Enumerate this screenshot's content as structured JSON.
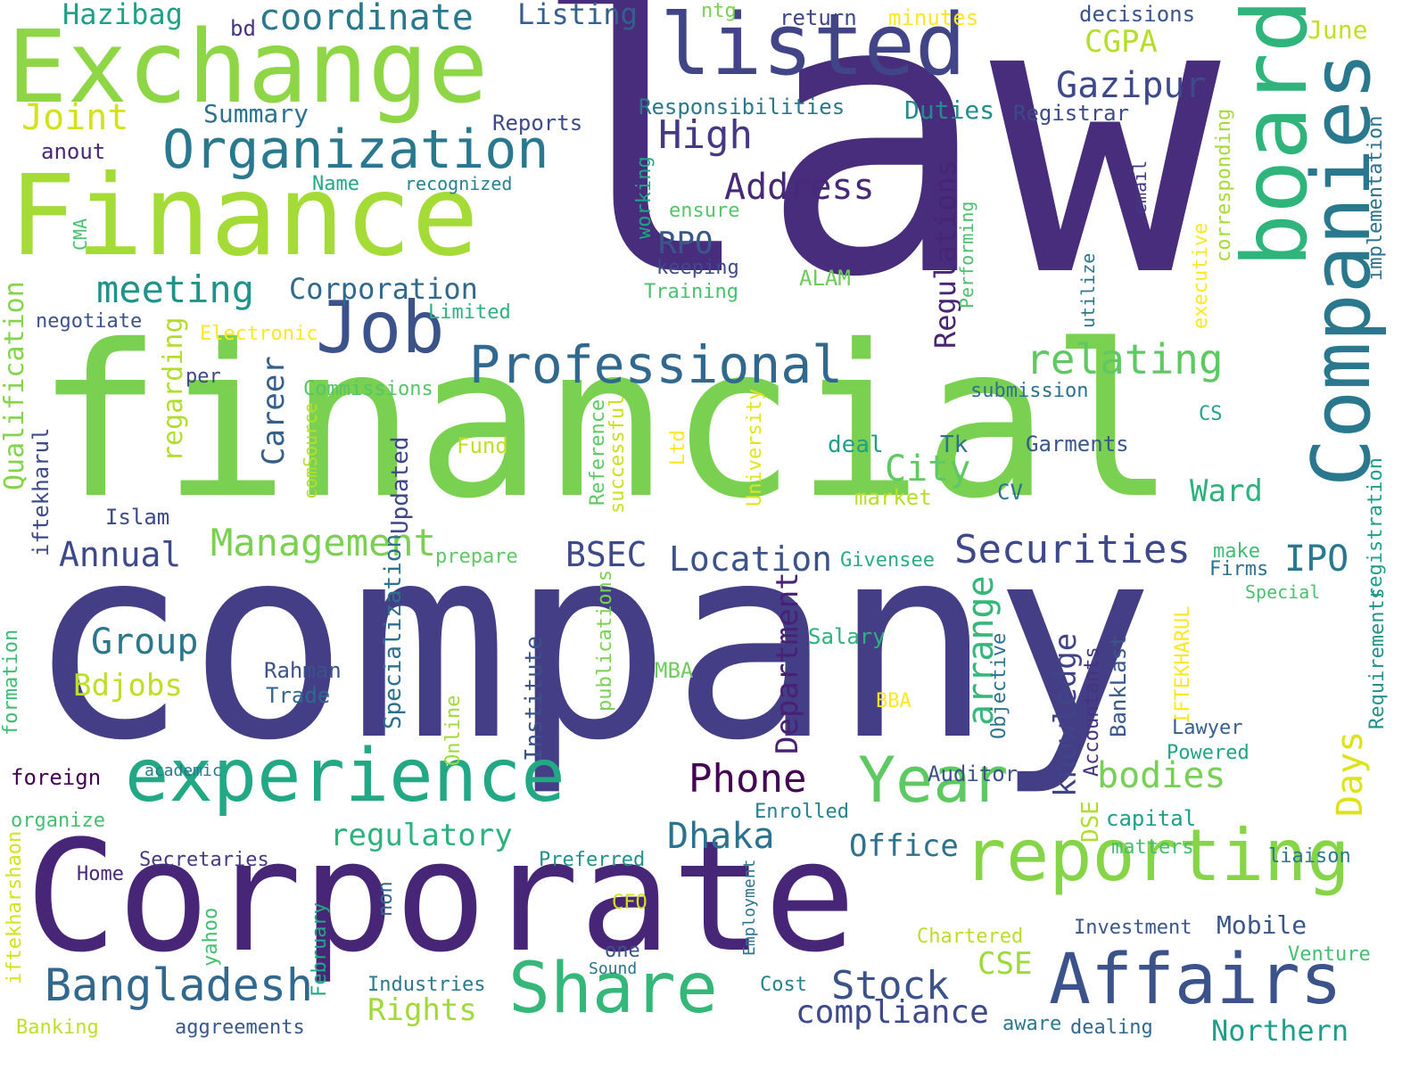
{
  "word_cloud": {
    "words": [
      {
        "text": "law",
        "color": "#472d7b"
      },
      {
        "text": "company",
        "color": "#433e85"
      },
      {
        "text": "financial",
        "color": "#7ad151"
      },
      {
        "text": "Corporate",
        "color": "#482677"
      },
      {
        "text": "Finance",
        "color": "#a5db36"
      },
      {
        "text": "Exchange",
        "color": "#8ed645"
      },
      {
        "text": "listed",
        "color": "#414487"
      },
      {
        "text": "board",
        "color": "#2fb47c"
      },
      {
        "text": "Companies",
        "color": "#2a788e"
      },
      {
        "text": "experience",
        "color": "#22a884"
      },
      {
        "text": "reporting",
        "color": "#86d549"
      },
      {
        "text": "Affairs",
        "color": "#3b528b"
      },
      {
        "text": "Share",
        "color": "#35b779"
      },
      {
        "text": "Year",
        "color": "#5ec962"
      },
      {
        "text": "Job",
        "color": "#3b528b"
      },
      {
        "text": "Organization",
        "color": "#2a788e"
      },
      {
        "text": "Professional",
        "color": "#31688e"
      },
      {
        "text": "Bangladesh",
        "color": "#31688e"
      },
      {
        "text": "relating",
        "color": "#5ec962"
      },
      {
        "text": "Securities",
        "color": "#3e4989"
      },
      {
        "text": "Management",
        "color": "#7ad151"
      },
      {
        "text": "meeting",
        "color": "#21918c"
      },
      {
        "text": "High",
        "color": "#443983"
      },
      {
        "text": "Gazipur",
        "color": "#3e4989"
      },
      {
        "text": "Address",
        "color": "#482878"
      },
      {
        "text": "Stock",
        "color": "#3b528b"
      },
      {
        "text": "compliance",
        "color": "#3e4989"
      },
      {
        "text": "Dhaka",
        "color": "#2c728e"
      },
      {
        "text": "regulatory",
        "color": "#2db27d"
      },
      {
        "text": "bodies",
        "color": "#75d054"
      },
      {
        "text": "Phone",
        "color": "#440154"
      },
      {
        "text": "coordinate",
        "color": "#2a788e"
      },
      {
        "text": "Joint",
        "color": "#d2e21b"
      },
      {
        "text": "Regulations",
        "color": "#482475"
      },
      {
        "text": "arrange",
        "color": "#35b779"
      },
      {
        "text": "knowledge",
        "color": "#414487"
      },
      {
        "text": "Days",
        "color": "#dde318"
      },
      {
        "text": "City",
        "color": "#5ec962"
      },
      {
        "text": "Ward",
        "color": "#2db27d"
      },
      {
        "text": "Location",
        "color": "#3b528b"
      },
      {
        "text": "Group",
        "color": "#2a788e"
      },
      {
        "text": "Bdjobs",
        "color": "#bddf26"
      },
      {
        "text": "Career",
        "color": "#355f8d"
      },
      {
        "text": "Annual",
        "color": "#3e4989"
      },
      {
        "text": "BSEC",
        "color": "#3e4989"
      },
      {
        "text": "IPO",
        "color": "#2a788e"
      },
      {
        "text": "Corporation",
        "color": "#31688e"
      },
      {
        "text": "Rights",
        "color": "#a0da39"
      },
      {
        "text": "CSE",
        "color": "#9bd93c"
      },
      {
        "text": "Northern",
        "color": "#1f9e89"
      },
      {
        "text": "Department",
        "color": "#482173"
      },
      {
        "text": "Office",
        "color": "#2c728e"
      },
      {
        "text": "RPO",
        "color": "#38588c"
      },
      {
        "text": "Listing",
        "color": "#355f8d"
      },
      {
        "text": "Hazibag",
        "color": "#1fa188"
      },
      {
        "text": "CGPA",
        "color": "#b5de2b"
      },
      {
        "text": "June",
        "color": "#c2df23"
      },
      {
        "text": "Duties",
        "color": "#228d8d"
      },
      {
        "text": "Summary",
        "color": "#2c728e"
      },
      {
        "text": "Qualification",
        "color": "#84d44b"
      },
      {
        "text": "regarding",
        "color": "#b2dd2d"
      },
      {
        "text": "Mobile",
        "color": "#39568c"
      },
      {
        "text": "Specialization",
        "color": "#2d708e"
      },
      {
        "text": "Institute",
        "color": "#3b528b"
      },
      {
        "text": "Updated",
        "color": "#404688"
      },
      {
        "text": "Reports",
        "color": "#3e4989"
      },
      {
        "text": "Responsibilities",
        "color": "#2a788e"
      },
      {
        "text": "Registrar",
        "color": "#3e4989"
      },
      {
        "text": "decisions",
        "color": "#3b528b"
      },
      {
        "text": "return",
        "color": "#404688"
      },
      {
        "text": "minutes",
        "color": "#fde725"
      },
      {
        "text": "ntg",
        "color": "#7ad151"
      },
      {
        "text": "bd",
        "color": "#46327e"
      },
      {
        "text": "anout",
        "color": "#482878"
      },
      {
        "text": "Name",
        "color": "#22a884"
      },
      {
        "text": "recognized",
        "color": "#27808e"
      },
      {
        "text": "CMA",
        "color": "#4ac16d"
      },
      {
        "text": "working",
        "color": "#20a486"
      },
      {
        "text": "ensure",
        "color": "#54c568"
      },
      {
        "text": "keeping",
        "color": "#3e4989"
      },
      {
        "text": "Training",
        "color": "#4ac16d"
      },
      {
        "text": "ALAM",
        "color": "#6ccd5a"
      },
      {
        "text": "Limited",
        "color": "#2db27d"
      },
      {
        "text": "negotiate",
        "color": "#3b528b"
      },
      {
        "text": "Electronic",
        "color": "#fde725"
      },
      {
        "text": "per",
        "color": "#3e4989"
      },
      {
        "text": "Commissions",
        "color": "#54c568"
      },
      {
        "text": "submission",
        "color": "#2c728e"
      },
      {
        "text": "email",
        "color": "#453781"
      },
      {
        "text": "corresponding",
        "color": "#a5db36"
      },
      {
        "text": "executive",
        "color": "#fde725"
      },
      {
        "text": "utilize",
        "color": "#2a788e"
      },
      {
        "text": "Performing",
        "color": "#4ac16d"
      },
      {
        "text": "implementation",
        "color": "#2c728e"
      },
      {
        "text": "comSource",
        "color": "#b5de2b"
      },
      {
        "text": "Fund",
        "color": "#bddf26"
      },
      {
        "text": "deal",
        "color": "#1f9e89"
      },
      {
        "text": "Tk",
        "color": "#2c728e"
      },
      {
        "text": "Garments",
        "color": "#38588c"
      },
      {
        "text": "CS",
        "color": "#20a486"
      },
      {
        "text": "CV",
        "color": "#2c728e"
      },
      {
        "text": "market",
        "color": "#b8de29"
      },
      {
        "text": "Islam",
        "color": "#3e4989"
      },
      {
        "text": "iftekharul",
        "color": "#3e4989"
      },
      {
        "text": "Reference",
        "color": "#5ec962"
      },
      {
        "text": "successful",
        "color": "#c8e020"
      },
      {
        "text": "Ltd",
        "color": "#fde725"
      },
      {
        "text": "University",
        "color": "#e2e418"
      },
      {
        "text": "prepare",
        "color": "#5ec962"
      },
      {
        "text": "Givensee",
        "color": "#27ad81"
      },
      {
        "text": "make",
        "color": "#3dbc74"
      },
      {
        "text": "Firms",
        "color": "#2c728e"
      },
      {
        "text": "registration",
        "color": "#1f9e89"
      },
      {
        "text": "Special",
        "color": "#4ac16d"
      },
      {
        "text": "Salary",
        "color": "#2db27d"
      },
      {
        "text": "MBA",
        "color": "#6ccd5a"
      },
      {
        "text": "BBA",
        "color": "#fde725"
      },
      {
        "text": "Rahman",
        "color": "#3b528b"
      },
      {
        "text": "Trade",
        "color": "#31688e"
      },
      {
        "text": "publications",
        "color": "#7ad151"
      },
      {
        "text": "Online",
        "color": "#9fda3a"
      },
      {
        "text": "Objective",
        "color": "#2c728e"
      },
      {
        "text": "Accountants",
        "color": "#46337f"
      },
      {
        "text": "BankLast",
        "color": "#38588c"
      },
      {
        "text": "IFTEKHARUL",
        "color": "#fde725"
      },
      {
        "text": "Lawyer",
        "color": "#355f8d"
      },
      {
        "text": "Powered",
        "color": "#20a486"
      },
      {
        "text": "Requirements",
        "color": "#21918c"
      },
      {
        "text": "Auditor",
        "color": "#3b528b"
      },
      {
        "text": "formation",
        "color": "#3dbc74"
      },
      {
        "text": "academic",
        "color": "#2a788e"
      },
      {
        "text": "foreign",
        "color": "#440154"
      },
      {
        "text": "Enrolled",
        "color": "#27808e"
      },
      {
        "text": "capital",
        "color": "#1f9e89"
      },
      {
        "text": "DSE",
        "color": "#b2dd2d"
      },
      {
        "text": "matters",
        "color": "#44bf70"
      },
      {
        "text": "liaison",
        "color": "#2a788e"
      },
      {
        "text": "organize",
        "color": "#44bf70"
      },
      {
        "text": "Secretaries",
        "color": "#443983"
      },
      {
        "text": "Preferred",
        "color": "#21918c"
      },
      {
        "text": "Home",
        "color": "#482878"
      },
      {
        "text": "CFO",
        "color": "#d2e21b"
      },
      {
        "text": "Employment",
        "color": "#2c728e"
      },
      {
        "text": "non",
        "color": "#31688e"
      },
      {
        "text": "Investment",
        "color": "#39568c"
      },
      {
        "text": "Chartered",
        "color": "#b8de29"
      },
      {
        "text": "Venture",
        "color": "#44bf70"
      },
      {
        "text": "one",
        "color": "#3b528b"
      },
      {
        "text": "Sound",
        "color": "#2c728e"
      },
      {
        "text": "iftekharshaon",
        "color": "#d2e21b"
      },
      {
        "text": "yahoo",
        "color": "#44bf70"
      },
      {
        "text": "February",
        "color": "#22a884"
      },
      {
        "text": "Industries",
        "color": "#2a788e"
      },
      {
        "text": "Cost",
        "color": "#27808e"
      },
      {
        "text": "Banking",
        "color": "#bddf26"
      },
      {
        "text": "aggreements",
        "color": "#38588c"
      },
      {
        "text": "aware",
        "color": "#2a788e"
      },
      {
        "text": "dealing",
        "color": "#31688e"
      }
    ]
  }
}
